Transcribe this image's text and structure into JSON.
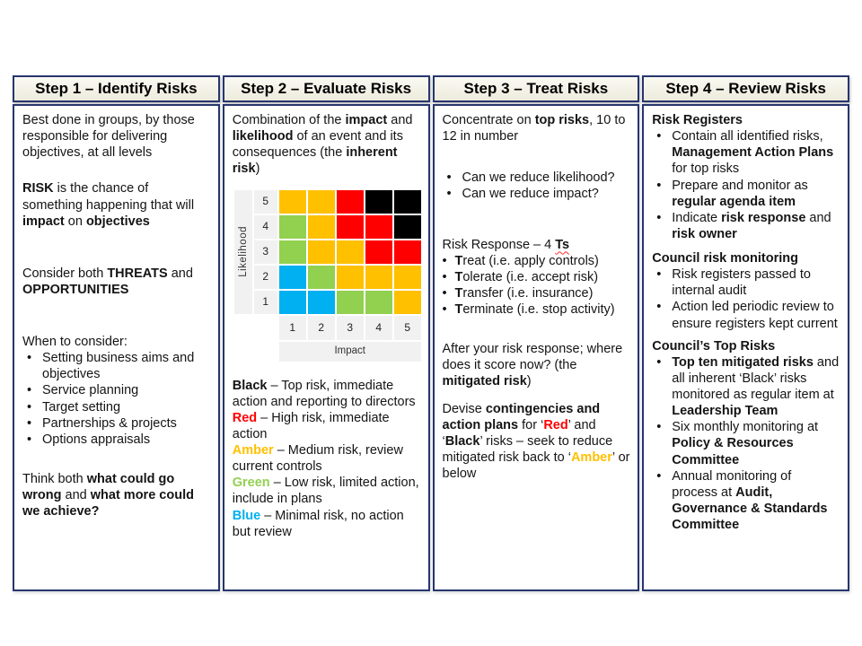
{
  "colors": {
    "navy": "#26366d",
    "red": "#ff0000",
    "amber": "#ffc000",
    "green": "#92d050",
    "blue": "#00b0f0",
    "black": "#000000",
    "axis_bg": "#f1f1f1"
  },
  "columns": [
    {
      "header": "Step 1 – Identify Risks",
      "blocks": [
        {
          "type": "p",
          "segs": [
            {
              "t": "Best done in groups, by those responsible for delivering objectives, at all levels"
            }
          ]
        },
        {
          "type": "p",
          "mt": 22,
          "segs": [
            {
              "t": "RISK",
              "b": 1
            },
            {
              "t": " is the chance of something happening that will "
            },
            {
              "t": "impact",
              "b": 1
            },
            {
              "t": " on "
            },
            {
              "t": "objectives",
              "b": 1
            }
          ]
        },
        {
          "type": "p",
          "mt": 40,
          "segs": [
            {
              "t": "Consider both "
            },
            {
              "t": "THREATS",
              "b": 1
            },
            {
              "t": " and "
            },
            {
              "t": "OPPORTUNITIES",
              "b": 1
            }
          ]
        },
        {
          "type": "p",
          "mt": 40,
          "segs": [
            {
              "t": "When to consider:"
            }
          ]
        },
        {
          "type": "bullets",
          "items": [
            [
              {
                "t": "Setting business aims and objectives"
              }
            ],
            [
              {
                "t": "Service planning"
              }
            ],
            [
              {
                "t": "Target setting"
              }
            ],
            [
              {
                "t": "Partnerships & projects"
              }
            ],
            [
              {
                "t": "Options appraisals"
              }
            ]
          ]
        },
        {
          "type": "p",
          "mt": 26,
          "segs": [
            {
              "t": "Think both "
            },
            {
              "t": "what could go wrong",
              "b": 1
            },
            {
              "t": " and "
            },
            {
              "t": "what more could we achieve?",
              "b": 1
            }
          ]
        }
      ]
    },
    {
      "header": "Step 2 – Evaluate Risks",
      "blocks": [
        {
          "type": "p",
          "segs": [
            {
              "t": "Combination of the "
            },
            {
              "t": "impact",
              "b": 1
            },
            {
              "t": " and "
            },
            {
              "t": "likelihood",
              "b": 1
            },
            {
              "t": " of an event and its consequences (the "
            },
            {
              "t": "inherent risk",
              "b": 1
            },
            {
              "t": ")"
            }
          ]
        },
        {
          "type": "matrix",
          "mt": 14,
          "ylabel": "Likelihood",
          "xlabel": "Impact",
          "row_labels": [
            "5",
            "4",
            "3",
            "2",
            "1"
          ],
          "col_labels": [
            "1",
            "2",
            "3",
            "4",
            "5"
          ],
          "cells": [
            [
              "amber",
              "amber",
              "red",
              "black",
              "black"
            ],
            [
              "green",
              "amber",
              "red",
              "red",
              "black"
            ],
            [
              "green",
              "amber",
              "amber",
              "red",
              "red"
            ],
            [
              "blue",
              "green",
              "amber",
              "amber",
              "amber"
            ],
            [
              "blue",
              "blue",
              "green",
              "green",
              "amber"
            ]
          ]
        },
        {
          "type": "p",
          "mt": 18,
          "segs": [
            {
              "t": "Black",
              "b": 1
            },
            {
              "t": " – Top risk, immediate action and reporting to directors"
            }
          ]
        },
        {
          "type": "p",
          "segs": [
            {
              "t": "Red",
              "b": 1,
              "c": "red"
            },
            {
              "t": " – High risk, immediate action"
            }
          ]
        },
        {
          "type": "p",
          "segs": [
            {
              "t": "Amber",
              "b": 1,
              "c": "amber"
            },
            {
              "t": " – Medium risk, review current controls"
            }
          ]
        },
        {
          "type": "p",
          "segs": [
            {
              "t": "Green",
              "b": 1,
              "c": "green"
            },
            {
              "t": " – Low risk, limited action, include in plans"
            }
          ]
        },
        {
          "type": "p",
          "segs": [
            {
              "t": "Blue",
              "b": 1,
              "c": "blue"
            },
            {
              "t": " – Minimal risk, no action but review"
            }
          ]
        }
      ]
    },
    {
      "header": "Step 3 – Treat Risks",
      "blocks": [
        {
          "type": "p",
          "segs": [
            {
              "t": "Concentrate on "
            },
            {
              "t": "top risks",
              "b": 1
            },
            {
              "t": ", 10 to 12 in number"
            }
          ]
        },
        {
          "type": "bullets",
          "mt": 28,
          "items": [
            [
              {
                "t": "Can we reduce likelihood?"
              }
            ],
            [
              {
                "t": "Can we reduce impact?"
              }
            ]
          ]
        },
        {
          "type": "p",
          "mt": 38,
          "segs": [
            {
              "t": "Risk Response – 4 "
            },
            {
              "t": "Ts",
              "b": 1,
              "sq": 1
            }
          ]
        },
        {
          "type": "bullets",
          "tight": 1,
          "items": [
            [
              {
                "t": "T",
                "b": 1
              },
              {
                "t": "reat (i.e. apply controls)"
              }
            ],
            [
              {
                "t": "T",
                "b": 1
              },
              {
                "t": "olerate (i.e. accept risk)"
              }
            ],
            [
              {
                "t": "T",
                "b": 1
              },
              {
                "t": "ransfer (i.e. insurance)"
              }
            ],
            [
              {
                "t": "T",
                "b": 1
              },
              {
                "t": "erminate (i.e. stop activity)"
              }
            ]
          ]
        },
        {
          "type": "p",
          "mt": 26,
          "segs": [
            {
              "t": "After your risk response; where does it score now? (the "
            },
            {
              "t": "mitigated risk",
              "b": 1
            },
            {
              "t": ")"
            }
          ]
        },
        {
          "type": "p",
          "mt": 12,
          "segs": [
            {
              "t": "Devise "
            },
            {
              "t": "contingencies and action plans",
              "b": 1
            },
            {
              "t": " for ‘"
            },
            {
              "t": "Red",
              "b": 1,
              "c": "red"
            },
            {
              "t": "’ and ‘"
            },
            {
              "t": "Black",
              "b": 1
            },
            {
              "t": "’ risks – seek to reduce mitigated risk back to ‘"
            },
            {
              "t": "Amber",
              "b": 1,
              "c": "amber"
            },
            {
              "t": "’ or below"
            }
          ]
        }
      ]
    },
    {
      "header": "Step 4 – Review Risks",
      "blocks": [
        {
          "type": "p",
          "segs": [
            {
              "t": "Risk Registers",
              "b": 1
            }
          ]
        },
        {
          "type": "bullets",
          "items": [
            [
              {
                "t": "Contain all identified risks, "
              },
              {
                "t": "Management Action Plans",
                "b": 1
              },
              {
                "t": " for top risks"
              }
            ],
            [
              {
                "t": "Prepare and monitor as "
              },
              {
                "t": "regular agenda item",
                "b": 1
              }
            ],
            [
              {
                "t": "Indicate "
              },
              {
                "t": "risk response",
                "b": 1
              },
              {
                "t": " and "
              },
              {
                "t": "risk owner",
                "b": 1
              }
            ]
          ]
        },
        {
          "type": "p",
          "mt": 9,
          "segs": [
            {
              "t": "Council risk monitoring",
              "b": 1
            }
          ]
        },
        {
          "type": "bullets",
          "items": [
            [
              {
                "t": "Risk registers passed to internal audit"
              }
            ],
            [
              {
                "t": "Action led periodic review to ensure registers kept current"
              }
            ]
          ]
        },
        {
          "type": "p",
          "mt": 7,
          "segs": [
            {
              "t": "Council’s Top Risks",
              "b": 1
            }
          ]
        },
        {
          "type": "bullets",
          "items": [
            [
              {
                "t": "Top ten mitigated risks",
                "b": 1
              },
              {
                "t": " and all inherent ‘Black’ risks monitored as regular item at "
              },
              {
                "t": "Leadership Team",
                "b": 1
              }
            ],
            [
              {
                "t": "Six monthly monitoring at "
              },
              {
                "t": "Policy & Resources Committee",
                "b": 1
              }
            ],
            [
              {
                "t": "Annual monitoring of process at "
              },
              {
                "t": "Audit, Governance & Standards Committee",
                "b": 1
              }
            ]
          ]
        }
      ]
    }
  ]
}
